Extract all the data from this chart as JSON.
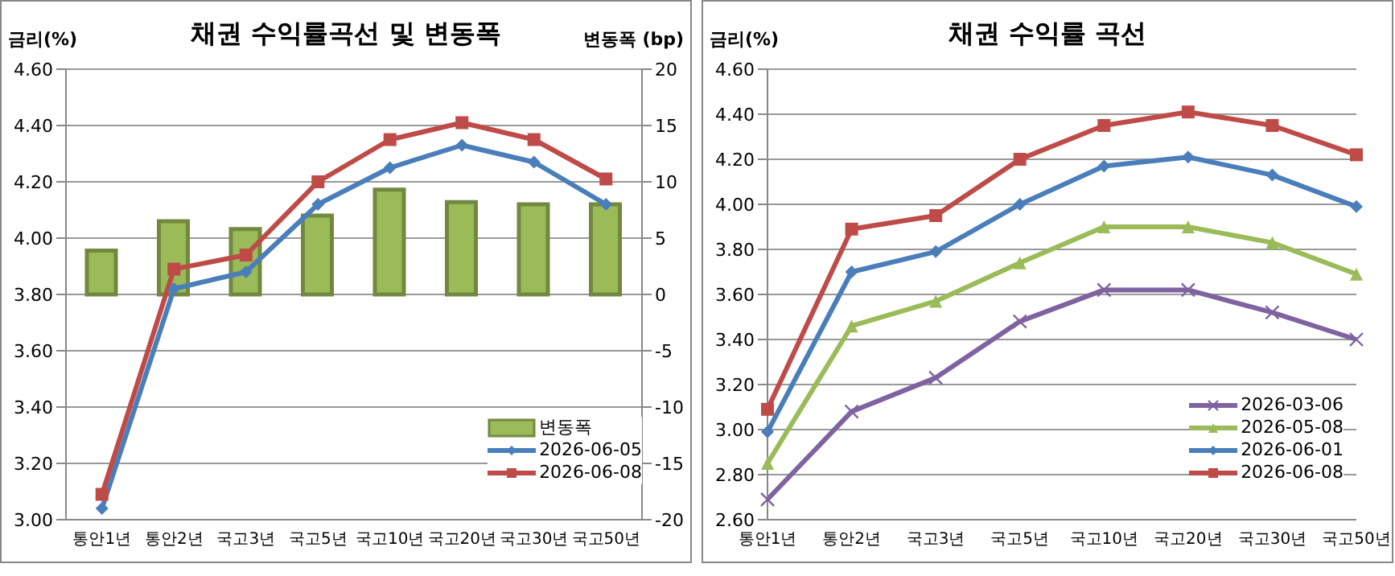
{
  "chart_data": [
    {
      "type": "line",
      "title": "채권 수익률곡선 및 변동폭",
      "ylabel": "금리(%)",
      "y2label": "변동폭 (bp)",
      "categories": [
        "통안1년",
        "통안2년",
        "국고3년",
        "국고5년",
        "국고10년",
        "국고20년",
        "국고30년",
        "국고50년"
      ],
      "series": [
        {
          "name": "변동폭",
          "type": "bar",
          "axis": "y2",
          "color": "#9bbb59",
          "values": [
            3.9,
            6.5,
            5.8,
            7.0,
            9.3,
            8.2,
            8.0,
            8.0
          ]
        },
        {
          "name": "2026-06-05",
          "type": "line",
          "marker": "diamond",
          "color": "#4a7ebb",
          "values": [
            3.04,
            3.82,
            3.88,
            4.12,
            4.25,
            4.33,
            4.27,
            4.12
          ]
        },
        {
          "name": "2026-06-08",
          "type": "line",
          "marker": "square",
          "color": "#be4b48",
          "values": [
            3.09,
            3.89,
            3.94,
            4.2,
            4.35,
            4.41,
            4.35,
            4.21
          ]
        }
      ],
      "ylim": [
        3.0,
        4.6
      ],
      "yticks": [
        {
          "value": 3.0,
          "label": "3.00"
        },
        {
          "value": 3.2,
          "label": "3.20"
        },
        {
          "value": 3.4,
          "label": "3.40"
        },
        {
          "value": 3.6,
          "label": "3.60"
        },
        {
          "value": 3.8,
          "label": "3.80"
        },
        {
          "value": 4.0,
          "label": "4.00"
        },
        {
          "value": 4.2,
          "label": "4.20"
        },
        {
          "value": 4.4,
          "label": "4.40"
        },
        {
          "value": 4.6,
          "label": "4.60"
        }
      ],
      "y2lim": [
        -20,
        20
      ],
      "y2ticks": [
        -20,
        -15,
        -10,
        -5,
        0,
        5,
        10,
        15,
        20
      ],
      "grid": "y",
      "legend": "bottom right"
    },
    {
      "type": "line",
      "title": "채권 수익률 곡선",
      "ylabel": "금리(%)",
      "categories": [
        "통안1년",
        "통안2년",
        "국고3년",
        "국고5년",
        "국고10년",
        "국고20년",
        "국고30년",
        "국고50년"
      ],
      "series": [
        {
          "name": "2026-03-06",
          "marker": "cross",
          "color": "#7f63a1",
          "values": [
            2.69,
            3.08,
            3.23,
            3.48,
            3.62,
            3.62,
            3.52,
            3.4
          ]
        },
        {
          "name": "2026-05-08",
          "marker": "triangle",
          "color": "#9bbb59",
          "values": [
            2.85,
            3.46,
            3.57,
            3.74,
            3.9,
            3.9,
            3.83,
            3.69
          ]
        },
        {
          "name": "2026-06-01",
          "marker": "diamond",
          "color": "#4a7ebb",
          "values": [
            2.99,
            3.7,
            3.79,
            4.0,
            4.17,
            4.21,
            4.13,
            3.99
          ]
        },
        {
          "name": "2026-06-08",
          "marker": "square",
          "color": "#be4b48",
          "values": [
            3.09,
            3.89,
            3.95,
            4.2,
            4.35,
            4.41,
            4.35,
            4.22
          ]
        }
      ],
      "ylim": [
        2.6,
        4.6
      ],
      "yticks": [
        {
          "value": 2.6,
          "label": "2.60"
        },
        {
          "value": 2.8,
          "label": "2.80"
        },
        {
          "value": 3.0,
          "label": "3.00"
        },
        {
          "value": 3.2,
          "label": "3.20"
        },
        {
          "value": 3.4,
          "label": "3.40"
        },
        {
          "value": 3.6,
          "label": "3.60"
        },
        {
          "value": 3.8,
          "label": "3.80"
        },
        {
          "value": 4.0,
          "label": "4.00"
        },
        {
          "value": 4.2,
          "label": "4.20"
        },
        {
          "value": 4.4,
          "label": "4.40"
        },
        {
          "value": 4.6,
          "label": "4.60"
        }
      ],
      "grid": "y",
      "legend": "bottom right"
    }
  ]
}
